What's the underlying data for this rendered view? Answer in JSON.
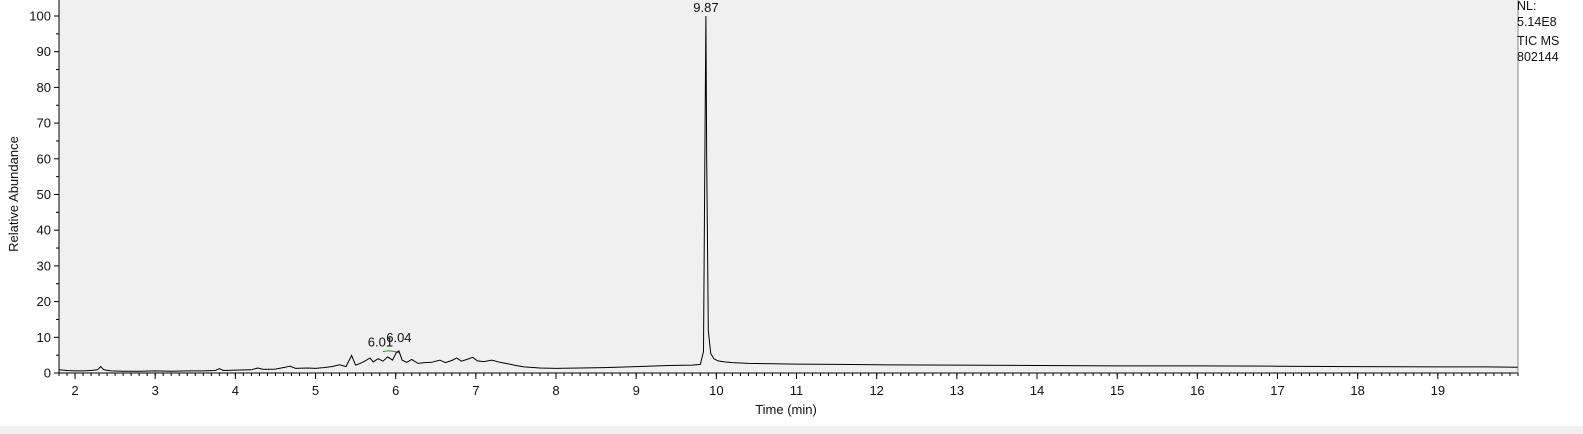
{
  "chart_data": {
    "type": "line",
    "xlabel": "Time (min)",
    "ylabel": "Relative Abundance",
    "xlim": [
      1.8,
      20.0
    ],
    "ylim": [
      0,
      100
    ],
    "x_ticks": [
      2,
      3,
      4,
      5,
      6,
      7,
      8,
      9,
      10,
      11,
      12,
      13,
      14,
      15,
      16,
      17,
      18,
      19
    ],
    "y_ticks": [
      0,
      10,
      20,
      30,
      40,
      50,
      60,
      70,
      80,
      90,
      100
    ],
    "grid": false,
    "series": [
      {
        "color": "#000000",
        "x": [
          1.8,
          1.9,
          2.0,
          2.1,
          2.2,
          2.28,
          2.32,
          2.36,
          2.45,
          2.6,
          2.8,
          3.0,
          3.2,
          3.4,
          3.6,
          3.75,
          3.8,
          3.85,
          4.0,
          4.2,
          4.28,
          4.35,
          4.5,
          4.62,
          4.68,
          4.75,
          4.9,
          5.0,
          5.1,
          5.2,
          5.3,
          5.38,
          5.45,
          5.5,
          5.55,
          5.62,
          5.68,
          5.72,
          5.78,
          5.84,
          5.9,
          5.96,
          6.01,
          6.04,
          6.08,
          6.14,
          6.2,
          6.28,
          6.36,
          6.45,
          6.55,
          6.62,
          6.7,
          6.76,
          6.82,
          6.9,
          6.96,
          7.02,
          7.1,
          7.2,
          7.3,
          7.4,
          7.5,
          7.6,
          7.8,
          8.0,
          8.3,
          8.6,
          9.0,
          9.4,
          9.7,
          9.8,
          9.84,
          9.86,
          9.87,
          9.88,
          9.9,
          9.93,
          9.97,
          10.02,
          10.1,
          10.2,
          10.4,
          10.7,
          11.0,
          11.5,
          12.0,
          13.0,
          14.0,
          15.0,
          16.0,
          17.0,
          18.0,
          19.0,
          19.6,
          20.0
        ],
        "y": [
          0.9,
          0.7,
          0.6,
          0.6,
          0.7,
          0.9,
          1.8,
          0.9,
          0.6,
          0.5,
          0.5,
          0.6,
          0.5,
          0.6,
          0.6,
          0.7,
          1.2,
          0.7,
          0.8,
          0.9,
          1.4,
          1.0,
          1.1,
          1.6,
          1.9,
          1.3,
          1.4,
          1.3,
          1.5,
          1.8,
          2.3,
          1.8,
          4.9,
          2.2,
          2.6,
          3.4,
          4.2,
          3.1,
          4.0,
          3.3,
          4.5,
          3.6,
          5.8,
          6.2,
          3.6,
          3.0,
          3.8,
          2.7,
          2.9,
          3.0,
          3.6,
          2.9,
          3.5,
          4.2,
          3.3,
          3.9,
          4.4,
          3.4,
          3.2,
          3.6,
          3.0,
          2.6,
          2.1,
          1.7,
          1.4,
          1.3,
          1.4,
          1.5,
          1.8,
          2.1,
          2.2,
          2.4,
          6.0,
          70.0,
          100.0,
          60.0,
          12.0,
          5.5,
          4.0,
          3.4,
          3.1,
          2.9,
          2.7,
          2.6,
          2.5,
          2.4,
          2.3,
          2.2,
          2.1,
          2.0,
          2.0,
          1.9,
          1.8,
          1.7,
          1.7,
          1.6
        ]
      }
    ],
    "peak_labels": [
      {
        "text": "6.01",
        "x": 5.81,
        "y": 6.3
      },
      {
        "text": "6.04",
        "x": 6.04,
        "y": 7.5
      },
      {
        "text": "9.87",
        "x": 9.87,
        "y": 100
      }
    ],
    "integration_baseline": {
      "color": "#2e8b2e",
      "x": [
        5.84,
        6.04
      ],
      "y": [
        6.0,
        5.6
      ]
    }
  },
  "info": {
    "nl_label": "NL:",
    "nl_value": "5.14E8",
    "scan_type": "TIC  MS",
    "file_id": "802144"
  }
}
